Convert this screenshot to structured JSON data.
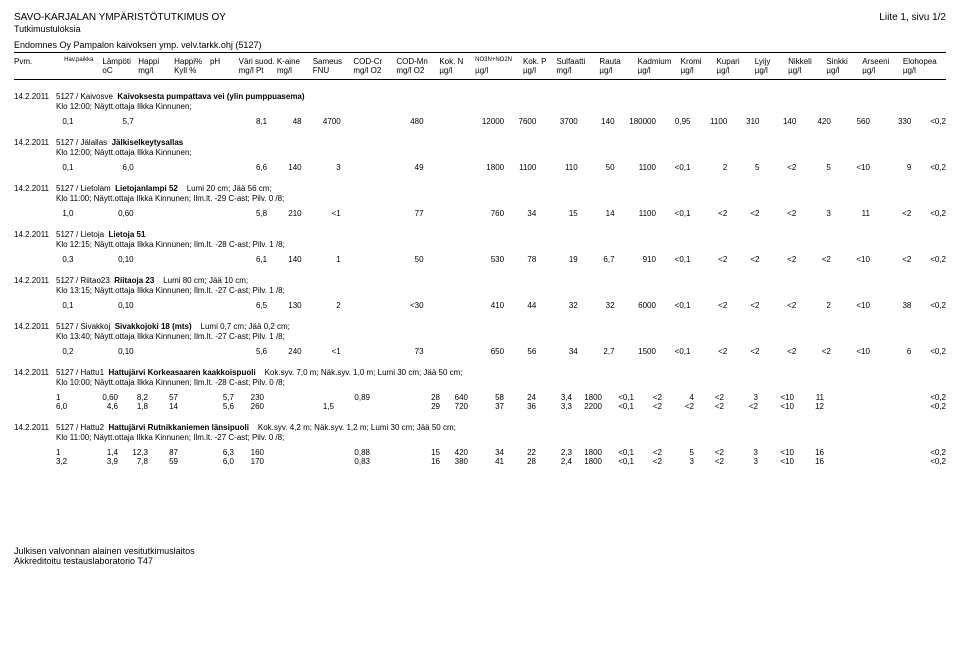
{
  "header": {
    "company": "SAVO-KARJALAN YMPÄRISTÖTUTKIMUS OY",
    "page": "Liite 1, sivu 1/2",
    "sub": "Tutkimustuloksia",
    "line": "Endomnes Oy Pampalon kaivoksen ymp. velv.tarkk.ohj (5127)"
  },
  "columns": {
    "h1": [
      "Pvm.",
      "Hav.paikka",
      "Lämpöti",
      "Happi",
      "Happi%",
      "pH",
      "Väri suod.",
      "K-aine",
      "Sameus",
      "COD-Cr",
      "COD-Mn",
      "Kok. N",
      "NO3N+NO2N",
      "Kok. P",
      "Sulfaatti",
      "Rauta",
      "Kadmium",
      "Kromi",
      "Kupari",
      "Lyijy",
      "Nikkeli",
      "Sinkki",
      "Arseeni",
      "Elohopea"
    ],
    "h2": [
      "",
      "",
      "oC",
      "mg/l",
      "Kyll %",
      "",
      "mg/l Pt",
      "mg/l",
      "FNU",
      "mg/l O2",
      "mg/l O2",
      "µg/l",
      "µg/l",
      "µg/l",
      "mg/l",
      "µg/l",
      "µg/l",
      "µg/l",
      "µg/l",
      "µg/l",
      "µg/l",
      "µg/l",
      "µg/l",
      "µg/l"
    ]
  },
  "blocks": [
    {
      "date": "14.2.2011",
      "title_code": "5127 / Kaivosve",
      "title_bold": "Kaivoksesta pumpattava vei (ylin pumppuasema)",
      "sub": "Klo 12:00; Näytt.ottaja Ilkka Kinnunen;",
      "rows": [
        [
          "",
          "0,1",
          "5,7",
          "",
          "",
          "",
          "8,1",
          "48",
          "4700",
          "",
          "480",
          "",
          "12000",
          "7600",
          "3700",
          "140",
          "180000",
          "0,95",
          "1100",
          "310",
          "140",
          "420",
          "560",
          "330",
          "<0,2"
        ]
      ]
    },
    {
      "date": "14.2.2011",
      "title_code": "5127 / Jälallas",
      "title_bold": "Jälkiselkeytysallas",
      "sub": "Klo 12:00; Näytt.ottaja Ilkka Kinnunen;",
      "rows": [
        [
          "",
          "0,1",
          "6,0",
          "",
          "",
          "",
          "6,6",
          "140",
          "3",
          "",
          "49",
          "",
          "1800",
          "1100",
          "110",
          "50",
          "1100",
          "<0,1",
          "2",
          "5",
          "<2",
          "5",
          "<10",
          "9",
          "<0,2"
        ]
      ]
    },
    {
      "date": "14.2.2011",
      "title_code": "5127 / Lietolam",
      "title_bold": "Lietojanlampi 52",
      "title_after": "Lumi 20 cm; Jää 56 cm;",
      "sub": "Klo 11:00; Näytt.ottaja Ilkka Kinnunen; Ilm.lt. -29 C-ast; Pilv. 0 /8;",
      "rows": [
        [
          "",
          "1,0",
          "0,60",
          "",
          "",
          "",
          "5,8",
          "210",
          "<1",
          "",
          "77",
          "",
          "760",
          "34",
          "15",
          "14",
          "1100",
          "<0,1",
          "<2",
          "<2",
          "<2",
          "3",
          "11",
          "<2",
          "<0,2"
        ]
      ]
    },
    {
      "date": "14.2.2011",
      "title_code": "5127 / Lietoja",
      "title_bold": "Lietoja 51",
      "sub": "Klo 12:15; Näytt.ottaja Ilkka Kinnunen; Ilm.lt. -28 C-ast; Pilv. 1 /8;",
      "rows": [
        [
          "",
          "0,3",
          "0,10",
          "",
          "",
          "",
          "6,1",
          "140",
          "1",
          "",
          "50",
          "",
          "530",
          "78",
          "19",
          "6,7",
          "910",
          "<0,1",
          "<2",
          "<2",
          "<2",
          "<2",
          "<10",
          "<2",
          "<0,2"
        ]
      ]
    },
    {
      "date": "14.2.2011",
      "title_code": "5127 / Riitao23",
      "title_bold": "Riitaoja 23",
      "title_after": "Lumi 80 cm; Jää 10 cm;",
      "sub": "Klo 13:15; Näytt.ottaja Ilkka Kinnunen; Ilm.lt. -27 C-ast; Pilv. 1 /8;",
      "rows": [
        [
          "",
          "0,1",
          "0,10",
          "",
          "",
          "",
          "6,5",
          "130",
          "2",
          "",
          "<30",
          "",
          "410",
          "44",
          "32",
          "32",
          "6000",
          "<0,1",
          "<2",
          "<2",
          "<2",
          "2",
          "<10",
          "38",
          "<0,2"
        ]
      ]
    },
    {
      "date": "14.2.2011",
      "title_code": "5127 / Sivakkoj",
      "title_bold": "Sivakkojoki 18 (mts)",
      "title_after": "Lumi 0,7 cm; Jää 0,2 cm;",
      "sub": "Klo 13:40; Näytt.ottaja Ilkka Kinnunen; Ilm.lt. -27 C-ast; Pilv. 1 /8;",
      "rows": [
        [
          "",
          "0,2",
          "0,10",
          "",
          "",
          "",
          "5,6",
          "240",
          "<1",
          "",
          "73",
          "",
          "650",
          "56",
          "34",
          "2,7",
          "1500",
          "<0,1",
          "<2",
          "<2",
          "<2",
          "<2",
          "<10",
          "6",
          "<0,2"
        ]
      ]
    },
    {
      "date": "14.2.2011",
      "title_code": "5127 / Hattu1",
      "title_bold": "Hattujärvi Korkeasaaren kaakkoispuoli",
      "title_after": "Kok.syv. 7,0 m; Näk.syv. 1,0 m; Lumi 30 cm; Jää 50 cm;",
      "sub": "Klo 10:00; Näytt.ottaja Ilkka Kinnunen; Ilm.lt. -28 C-ast; Pilv. 0 /8;",
      "rows": [
        [
          "",
          "1",
          "0,60",
          "8,2",
          "57",
          "",
          "5,7",
          "230",
          "",
          "",
          "0,89",
          "",
          "28",
          "640",
          "58",
          "24",
          "3,4",
          "1800",
          "<0,1",
          "<2",
          "4",
          "<2",
          "3",
          "<10",
          "11",
          "<0,2"
        ],
        [
          "",
          "6,0",
          "4,6",
          "1,8",
          "14",
          "",
          "5,6",
          "260",
          "",
          "1,5",
          "",
          "",
          "29",
          "720",
          "37",
          "36",
          "3,3",
          "2200",
          "<0,1",
          "<2",
          "<2",
          "<2",
          "<2",
          "<10",
          "12",
          "<0,2"
        ]
      ]
    },
    {
      "date": "14.2.2011",
      "title_code": "5127 / Hattu2",
      "title_bold": "Hattujärvi Rutnikkaniemen länsipuoli",
      "title_after": "Kok.syv. 4,2 m; Näk.syv. 1,2 m; Lumi 30 cm; Jää 50 cm;",
      "sub": "Klo 11:00; Näytt.ottaja Ilkka Kinnunen; Ilm.lt. -27 C-ast; Pilv. 0 /8;",
      "rows": [
        [
          "",
          "1",
          "1,4",
          "12,3",
          "87",
          "",
          "6,3",
          "160",
          "",
          "",
          "0,88",
          "",
          "15",
          "420",
          "34",
          "22",
          "2,3",
          "1800",
          "<0,1",
          "<2",
          "5",
          "<2",
          "3",
          "<10",
          "16",
          "<0,2"
        ],
        [
          "",
          "3,2",
          "3,9",
          "7,8",
          "59",
          "",
          "6,0",
          "170",
          "",
          "",
          "0,83",
          "",
          "16",
          "380",
          "41",
          "28",
          "2,4",
          "1800",
          "<0,1",
          "<2",
          "3",
          "<2",
          "3",
          "<10",
          "16",
          "<0,2"
        ]
      ]
    }
  ],
  "footer": {
    "l1": "Julkisen valvonnan alainen vesitutkimuslaitos",
    "l2": "Akkreditoitu testauslaboratorio T47"
  }
}
